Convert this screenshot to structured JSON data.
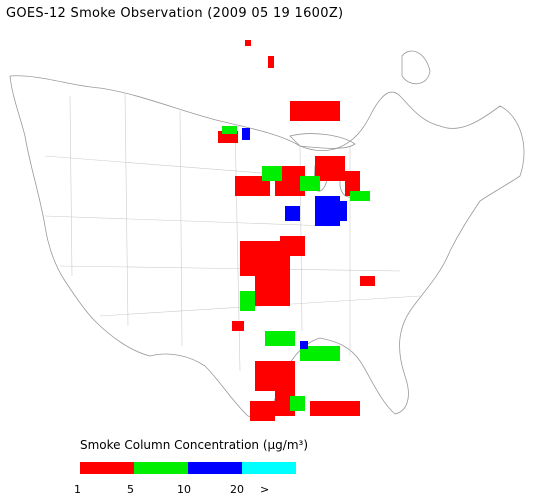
{
  "title": "GOES-12 Smoke Observation (2009 05 19  1600Z)",
  "legend": {
    "title": "Smoke Column Concentration (μg/m³)",
    "bins": [
      {
        "label": "1-5",
        "color": "#ff0000"
      },
      {
        "label": "5-10",
        "color": "#00ee00"
      },
      {
        "label": "10-20",
        "color": "#0000ff"
      },
      {
        "label": ">20",
        "color": "#00ffff"
      }
    ],
    "ticks": [
      "1",
      "5",
      "10",
      "20",
      ">"
    ]
  }
}
